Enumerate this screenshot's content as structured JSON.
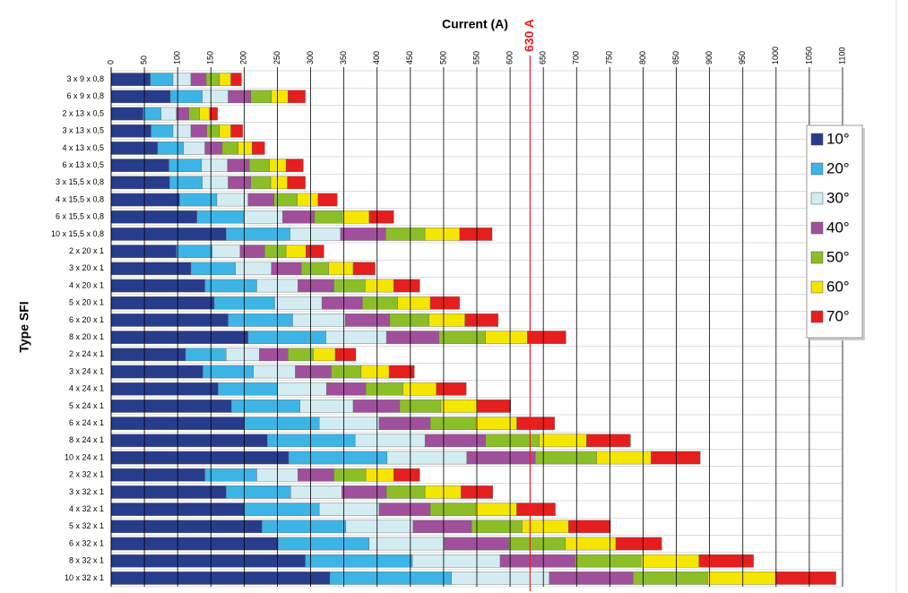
{
  "chart_data": {
    "type": "stacked-barh",
    "x_label": "Current (A)",
    "y_label": "Type SFI",
    "categories": [
      "3 x 9 x 0,8",
      "6 x 9 x 0,8",
      "2 x 13 x 0,5",
      "3 x 13 x 0,5",
      "4 x 13 x 0,5",
      "6 x 13 x 0,5",
      "3 x 15,5 x 0,8",
      "4 x 15,5 x 0,8",
      "6 x 15,5 x 0,8",
      "10 x 15,5 x 0,8",
      "2 x 20 x 1",
      "3 x 20 x 1",
      "4 x 20 x 1",
      "5 x 20 x 1",
      "6 x 20 x 1",
      "8 x 20 x 1",
      "2 x 24 x 1",
      "3 x 24 x 1",
      "4 x 24 x 1",
      "5 x 24 x 1",
      "6 x 24 x 1",
      "8 x 24 x 1",
      "10 x 24 x 1",
      "2 x 32 x 1",
      "3 x 32 x 1",
      "4 x 32 x 1",
      "5 x 32 x 1",
      "6 x 32 x 1",
      "8 x 32 x 1",
      "10 x 32 x 1"
    ],
    "series": [
      {
        "name": "10°",
        "color": "#283c8c",
        "values": [
          59,
          89,
          48,
          60,
          70,
          87,
          88,
          103,
          129,
          173,
          98,
          120,
          141,
          155,
          176,
          206,
          112,
          138,
          161,
          181,
          200,
          235,
          267,
          141,
          173,
          200,
          227,
          251,
          292,
          329
        ]
      },
      {
        "name": "20°",
        "color": "#3cb4e6",
        "values": [
          34,
          48,
          27,
          33,
          39,
          49,
          49,
          56,
          70,
          96,
          54,
          67,
          78,
          91,
          97,
          117,
          61,
          76,
          89,
          103,
          113,
          132,
          148,
          78,
          97,
          113,
          126,
          137,
          161,
          183
        ]
      },
      {
        "name": "30°",
        "color": "#d2ecf2",
        "values": [
          27,
          39,
          23,
          27,
          32,
          39,
          39,
          47,
          59,
          76,
          42,
          54,
          62,
          71,
          79,
          91,
          50,
          63,
          74,
          80,
          90,
          105,
          120,
          62,
          77,
          90,
          101,
          113,
          132,
          147
        ]
      },
      {
        "name": "40°",
        "color": "#a0509a",
        "values": [
          23,
          34,
          19,
          24,
          26,
          33,
          34,
          39,
          48,
          68,
          37,
          45,
          54,
          61,
          67,
          79,
          43,
          54,
          59,
          70,
          77,
          91,
          103,
          54,
          67,
          77,
          88,
          97,
          113,
          126
        ]
      },
      {
        "name": "50°",
        "color": "#8cbe28",
        "values": [
          20,
          31,
          16,
          19,
          24,
          30,
          30,
          35,
          42,
          59,
          32,
          41,
          47,
          53,
          59,
          70,
          38,
          45,
          56,
          62,
          68,
          81,
          92,
          48,
          58,
          68,
          76,
          85,
          99,
          112
        ]
      },
      {
        "name": "60°",
        "color": "#f5e600",
        "values": [
          17,
          25,
          15,
          17,
          21,
          25,
          25,
          31,
          40,
          52,
          30,
          37,
          43,
          49,
          54,
          63,
          33,
          42,
          50,
          55,
          62,
          71,
          82,
          42,
          54,
          62,
          70,
          76,
          87,
          102
        ]
      },
      {
        "name": "70°",
        "color": "#e61e1e",
        "values": [
          16,
          26,
          12,
          18,
          19,
          26,
          27,
          29,
          37,
          49,
          27,
          33,
          39,
          44,
          50,
          58,
          31,
          38,
          45,
          50,
          57,
          66,
          74,
          39,
          48,
          58,
          63,
          69,
          82,
          91
        ]
      }
    ],
    "xlim": [
      0,
      1100
    ],
    "xticks": [
      0,
      50,
      100,
      150,
      200,
      250,
      300,
      350,
      400,
      450,
      500,
      550,
      600,
      650,
      700,
      750,
      800,
      850,
      900,
      950,
      1000,
      1050,
      1100
    ],
    "grid": true,
    "annotation": {
      "value": 630,
      "label": "630 A",
      "color": "#e61e1e"
    },
    "legend": "right"
  }
}
